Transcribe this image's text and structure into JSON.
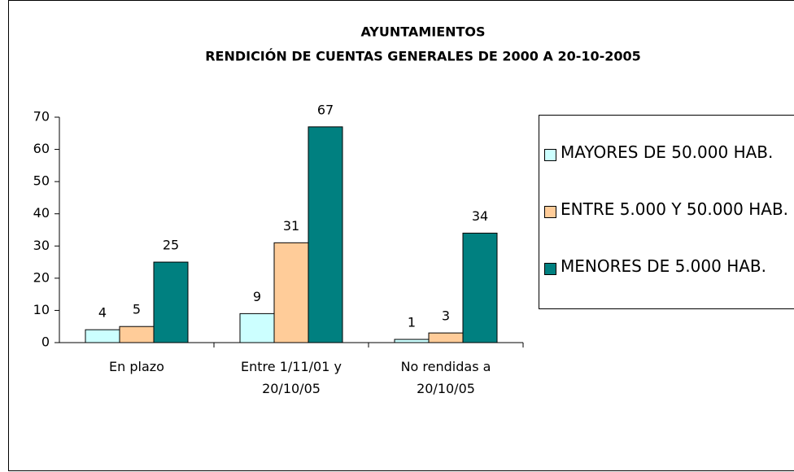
{
  "chart_data": {
    "type": "bar",
    "title": "AYUNTAMIENTOS",
    "subtitle": "RENDICIÓN DE CUENTAS GENERALES DE 2000 A 20-10-2005",
    "categories": [
      "En plazo",
      "Entre 1/11/01 y 20/10/05",
      "No rendidas a 20/10/05"
    ],
    "series": [
      {
        "name": "MAYORES DE 50.000 HAB.",
        "color": "#ccffff",
        "values": [
          4,
          9,
          1
        ]
      },
      {
        "name": "ENTRE 5.000 Y 50.000 HAB.",
        "color": "#ffcc99",
        "values": [
          5,
          31,
          3
        ]
      },
      {
        "name": "MENORES DE 5.000 HAB.",
        "color": "#008080",
        "values": [
          25,
          67,
          34
        ]
      }
    ],
    "ylim": [
      0,
      70
    ],
    "yticks": [
      0,
      10,
      20,
      30,
      40,
      50,
      60,
      70
    ],
    "legend": "right"
  }
}
